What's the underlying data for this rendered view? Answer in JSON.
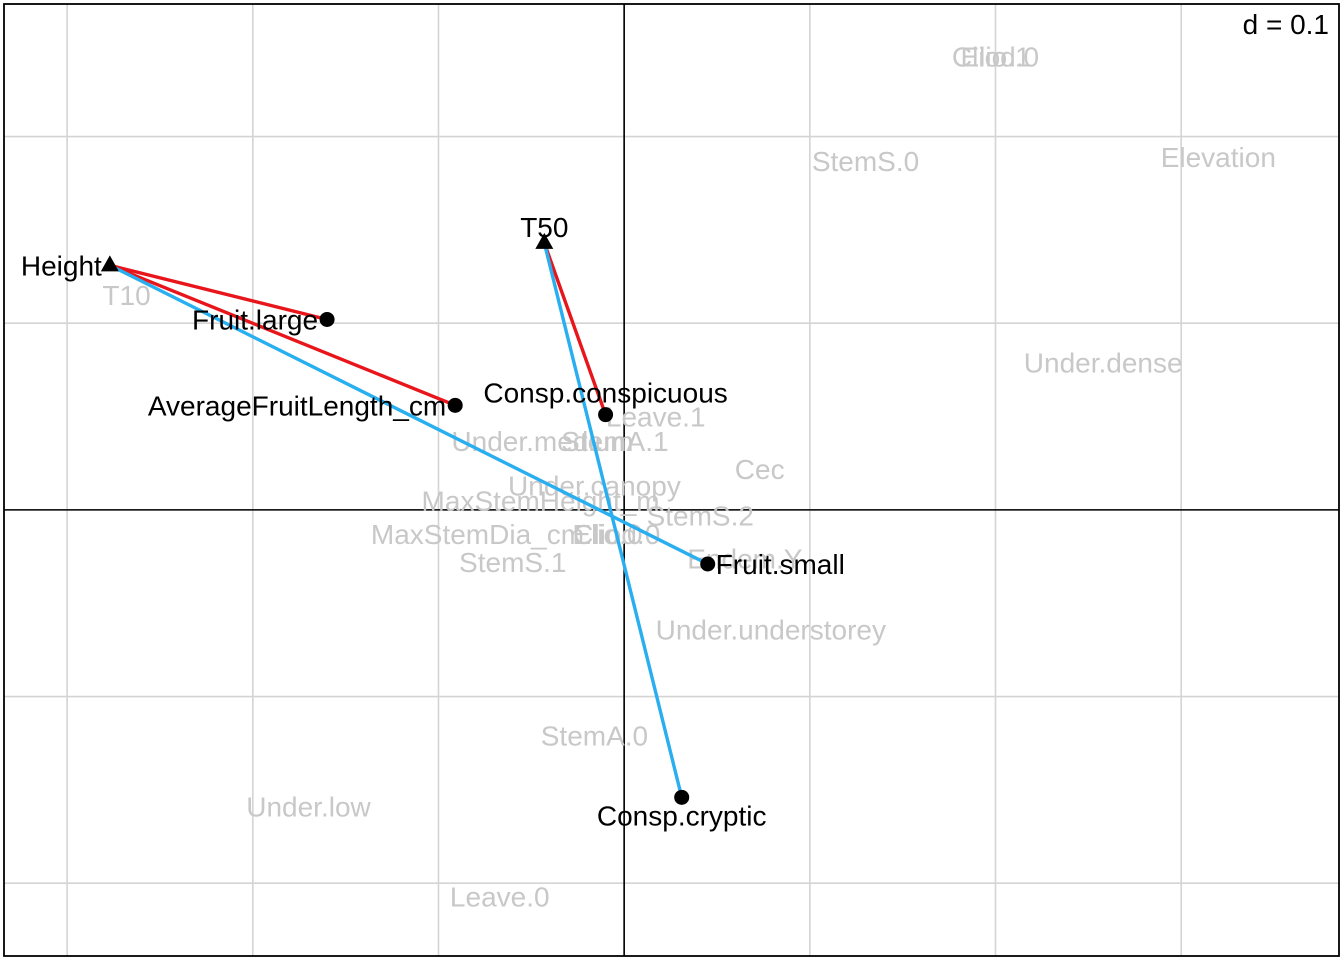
{
  "chart_data": {
    "type": "scatter",
    "title": "",
    "scale_label": "d = 0.1",
    "xlim": [
      -0.334,
      0.385
    ],
    "ylim": [
      -0.239,
      0.271
    ],
    "grid_step": 0.1,
    "grid": true,
    "colors": {
      "red_links": "#e8151b",
      "blue_links": "#29aef0",
      "points": "#000000",
      "background_labels": "#c8c8c8",
      "grid": "#d4d4d4"
    },
    "background_labels": [
      {
        "text": "Elio.1",
        "x": 0.2,
        "y": 0.243
      },
      {
        "text": "Cliod.0",
        "x": 0.2,
        "y": 0.243
      },
      {
        "text": "StemS.0",
        "x": 0.13,
        "y": 0.187
      },
      {
        "text": "Elevation",
        "x": 0.32,
        "y": 0.189
      },
      {
        "text": "T10",
        "x": -0.268,
        "y": 0.115
      },
      {
        "text": "Under.dense",
        "x": 0.258,
        "y": 0.079
      },
      {
        "text": "Leave.1",
        "x": 0.017,
        "y": 0.05
      },
      {
        "text": "StemA.1",
        "x": -0.005,
        "y": 0.037
      },
      {
        "text": "Under.medium",
        "x": -0.044,
        "y": 0.037
      },
      {
        "text": "Cec",
        "x": 0.073,
        "y": 0.022
      },
      {
        "text": "Under.canopy",
        "x": -0.016,
        "y": 0.013
      },
      {
        "text": "MaxStemHeight_m",
        "x": -0.045,
        "y": 0.005
      },
      {
        "text": "StemS.2",
        "x": 0.041,
        "y": -0.003
      },
      {
        "text": "MaxStemDia_cm",
        "x": -0.079,
        "y": -0.013
      },
      {
        "text": "Elio.0",
        "x": -0.009,
        "y": -0.013
      },
      {
        "text": "Cliod.0",
        "x": -0.004,
        "y": -0.013
      },
      {
        "text": "StemS.1",
        "x": -0.06,
        "y": -0.028
      },
      {
        "text": "Endem.Y",
        "x": 0.065,
        "y": -0.026
      },
      {
        "text": "Under.understorey",
        "x": 0.079,
        "y": -0.064
      },
      {
        "text": "StemA.0",
        "x": -0.016,
        "y": -0.121
      },
      {
        "text": "Under.low",
        "x": -0.17,
        "y": -0.159
      },
      {
        "text": "Leave.0",
        "x": -0.067,
        "y": -0.207
      }
    ],
    "traits": [
      {
        "name": "Height",
        "x": -0.277,
        "y": 0.131
      },
      {
        "name": "T50",
        "x": -0.043,
        "y": 0.143
      }
    ],
    "points": [
      {
        "name": "Fruit.large",
        "x": -0.16,
        "y": 0.102
      },
      {
        "name": "AverageFruitLength_cm",
        "x": -0.091,
        "y": 0.056
      },
      {
        "name": "Consp.conspicuous",
        "x": -0.01,
        "y": 0.051
      },
      {
        "name": "Fruit.small",
        "x": 0.045,
        "y": -0.029
      },
      {
        "name": "Consp.cryptic",
        "x": 0.031,
        "y": -0.154
      }
    ],
    "links": [
      {
        "from": "Height",
        "to": "Fruit.large",
        "color": "red"
      },
      {
        "from": "Height",
        "to": "AverageFruitLength_cm",
        "color": "red"
      },
      {
        "from": "T50",
        "to": "Consp.conspicuous",
        "color": "red"
      },
      {
        "from": "Height",
        "to": "Fruit.small",
        "color": "blue"
      },
      {
        "from": "T50",
        "to": "Consp.cryptic",
        "color": "blue"
      }
    ]
  }
}
